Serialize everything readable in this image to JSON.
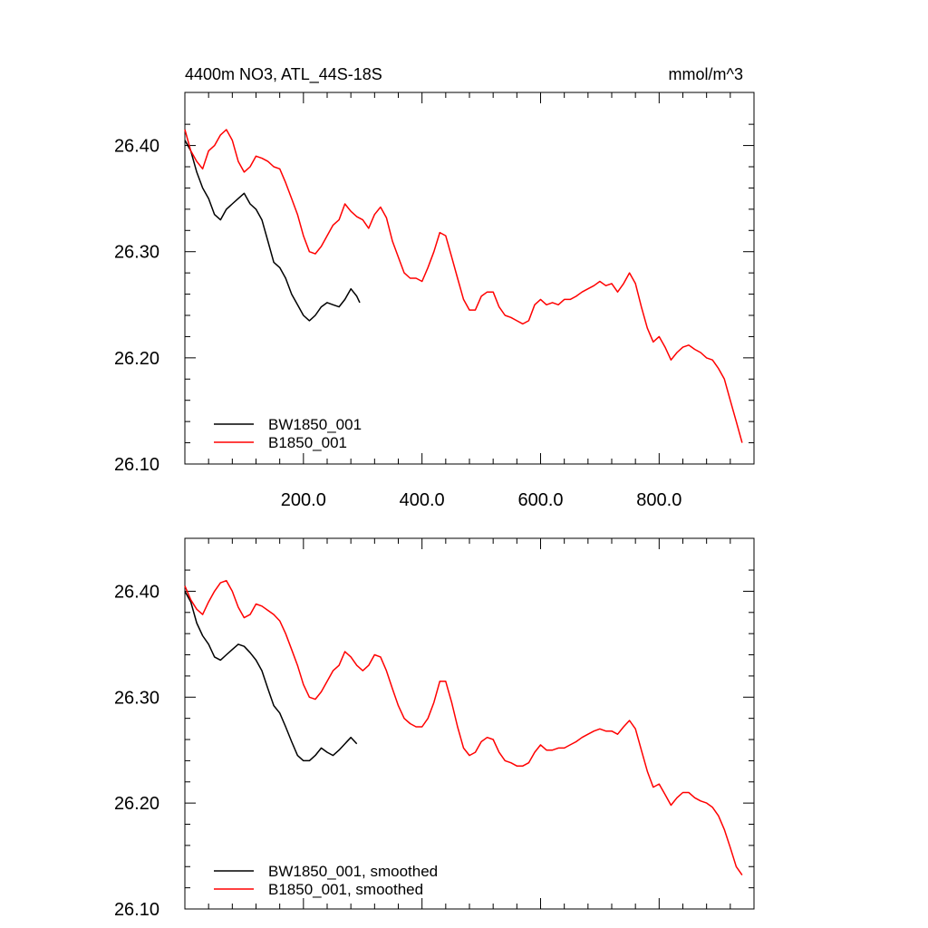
{
  "chart_data": [
    {
      "type": "line",
      "title_left": "4400m NO3, ATL_44S-18S",
      "title_right": "mmol/m^3",
      "xlabel": "",
      "ylabel": "",
      "xlim": [
        0,
        960
      ],
      "ylim": [
        26.1,
        26.45
      ],
      "x_ticks": [
        200,
        400,
        600,
        800
      ],
      "x_tick_labels": [
        "200.0",
        "400.0",
        "600.0",
        "800.0"
      ],
      "y_ticks": [
        26.1,
        26.2,
        26.3,
        26.4
      ],
      "y_tick_labels": [
        "26.10",
        "26.20",
        "26.30",
        "26.40"
      ],
      "grid": false,
      "legend_position": "bottom-left",
      "series": [
        {
          "name": "BW1850_001",
          "color": "#000000",
          "x": [
            0,
            10,
            20,
            30,
            40,
            50,
            60,
            70,
            80,
            90,
            100,
            110,
            120,
            130,
            140,
            150,
            160,
            170,
            180,
            190,
            200,
            210,
            220,
            230,
            240,
            250,
            260,
            270,
            280,
            290,
            295
          ],
          "y": [
            26.405,
            26.395,
            26.375,
            26.36,
            26.35,
            26.335,
            26.33,
            26.34,
            26.345,
            26.35,
            26.355,
            26.345,
            26.34,
            26.33,
            26.31,
            26.29,
            26.285,
            26.275,
            26.26,
            26.25,
            26.24,
            26.235,
            26.24,
            26.248,
            26.252,
            26.25,
            26.248,
            26.255,
            26.265,
            26.258,
            26.252
          ]
        },
        {
          "name": "B1850_001",
          "color": "#ff0000",
          "x": [
            0,
            10,
            20,
            30,
            40,
            50,
            60,
            70,
            80,
            90,
            100,
            110,
            120,
            130,
            140,
            150,
            160,
            170,
            180,
            190,
            200,
            210,
            220,
            230,
            240,
            250,
            260,
            270,
            280,
            290,
            300,
            310,
            320,
            330,
            340,
            350,
            360,
            370,
            380,
            390,
            400,
            410,
            420,
            430,
            440,
            450,
            460,
            470,
            480,
            490,
            500,
            510,
            520,
            530,
            540,
            550,
            560,
            570,
            580,
            590,
            600,
            610,
            620,
            630,
            640,
            650,
            660,
            670,
            680,
            690,
            700,
            710,
            720,
            730,
            740,
            750,
            760,
            770,
            780,
            790,
            800,
            810,
            820,
            830,
            840,
            850,
            860,
            870,
            880,
            890,
            900,
            910,
            920,
            930,
            940
          ],
          "y": [
            26.415,
            26.395,
            26.385,
            26.378,
            26.395,
            26.4,
            26.41,
            26.415,
            26.405,
            26.385,
            26.375,
            26.38,
            26.39,
            26.388,
            26.385,
            26.38,
            26.378,
            26.365,
            26.35,
            26.335,
            26.315,
            26.3,
            26.298,
            26.305,
            26.315,
            26.325,
            26.33,
            26.345,
            26.338,
            26.333,
            26.33,
            26.322,
            26.335,
            26.342,
            26.332,
            26.31,
            26.295,
            26.28,
            26.275,
            26.275,
            26.272,
            26.285,
            26.3,
            26.318,
            26.315,
            26.295,
            26.275,
            26.255,
            26.245,
            26.245,
            26.258,
            26.262,
            26.262,
            26.248,
            26.24,
            26.238,
            26.235,
            26.232,
            26.235,
            26.25,
            26.255,
            26.25,
            26.252,
            26.25,
            26.255,
            26.255,
            26.258,
            26.262,
            26.265,
            26.268,
            26.272,
            26.268,
            26.27,
            26.262,
            26.27,
            26.28,
            26.27,
            26.248,
            26.228,
            26.215,
            26.22,
            26.21,
            26.198,
            26.205,
            26.21,
            26.212,
            26.208,
            26.205,
            26.2,
            26.198,
            26.19,
            26.18,
            26.16,
            26.14,
            26.12
          ]
        }
      ]
    },
    {
      "type": "line",
      "title_left": "",
      "title_right": "",
      "xlabel": "",
      "ylabel": "",
      "xlim": [
        0,
        960
      ],
      "ylim": [
        26.1,
        26.45
      ],
      "x_ticks": [
        200,
        400,
        600,
        800
      ],
      "x_tick_labels": [],
      "y_ticks": [
        26.1,
        26.2,
        26.3,
        26.4
      ],
      "y_tick_labels": [
        "26.10",
        "26.20",
        "26.30",
        "26.40"
      ],
      "grid": false,
      "legend_position": "bottom-left",
      "series": [
        {
          "name": "BW1850_001, smoothed",
          "color": "#000000",
          "x": [
            0,
            10,
            20,
            30,
            40,
            50,
            60,
            70,
            80,
            90,
            100,
            110,
            120,
            130,
            140,
            150,
            160,
            170,
            180,
            190,
            200,
            210,
            220,
            230,
            240,
            250,
            260,
            270,
            280,
            290
          ],
          "y": [
            26.4,
            26.39,
            26.37,
            26.358,
            26.35,
            26.338,
            26.335,
            26.34,
            26.345,
            26.35,
            26.348,
            26.342,
            26.335,
            26.325,
            26.308,
            26.292,
            26.285,
            26.272,
            26.258,
            26.245,
            26.24,
            26.24,
            26.245,
            26.252,
            26.248,
            26.245,
            26.25,
            26.256,
            26.262,
            26.256
          ]
        },
        {
          "name": "B1850_001, smoothed",
          "color": "#ff0000",
          "x": [
            0,
            10,
            20,
            30,
            40,
            50,
            60,
            70,
            80,
            90,
            100,
            110,
            120,
            130,
            140,
            150,
            160,
            170,
            180,
            190,
            200,
            210,
            220,
            230,
            240,
            250,
            260,
            270,
            280,
            290,
            300,
            310,
            320,
            330,
            340,
            350,
            360,
            370,
            380,
            390,
            400,
            410,
            420,
            430,
            440,
            450,
            460,
            470,
            480,
            490,
            500,
            510,
            520,
            530,
            540,
            550,
            560,
            570,
            580,
            590,
            600,
            610,
            620,
            630,
            640,
            650,
            660,
            670,
            680,
            690,
            700,
            710,
            720,
            730,
            740,
            750,
            760,
            770,
            780,
            790,
            800,
            810,
            820,
            830,
            840,
            850,
            860,
            870,
            880,
            890,
            900,
            910,
            920,
            930,
            940
          ],
          "y": [
            26.405,
            26.392,
            26.383,
            26.378,
            26.39,
            26.4,
            26.408,
            26.41,
            26.4,
            26.385,
            26.375,
            26.378,
            26.388,
            26.386,
            26.382,
            26.378,
            26.372,
            26.36,
            26.345,
            26.33,
            26.312,
            26.3,
            26.298,
            26.305,
            26.315,
            26.325,
            26.33,
            26.343,
            26.338,
            26.33,
            26.325,
            26.33,
            26.34,
            26.338,
            26.325,
            26.308,
            26.292,
            26.28,
            26.275,
            26.272,
            26.272,
            26.28,
            26.295,
            26.315,
            26.315,
            26.295,
            26.272,
            26.252,
            26.245,
            26.248,
            26.258,
            26.262,
            26.26,
            26.248,
            26.24,
            26.238,
            26.235,
            26.235,
            26.238,
            26.248,
            26.255,
            26.25,
            26.25,
            26.252,
            26.252,
            26.255,
            26.258,
            26.262,
            26.265,
            26.268,
            26.27,
            26.268,
            26.268,
            26.265,
            26.272,
            26.278,
            26.27,
            26.25,
            26.23,
            26.215,
            26.218,
            26.208,
            26.198,
            26.205,
            26.21,
            26.21,
            26.205,
            26.202,
            26.2,
            26.196,
            26.188,
            26.175,
            26.158,
            26.14,
            26.132
          ]
        }
      ]
    }
  ]
}
